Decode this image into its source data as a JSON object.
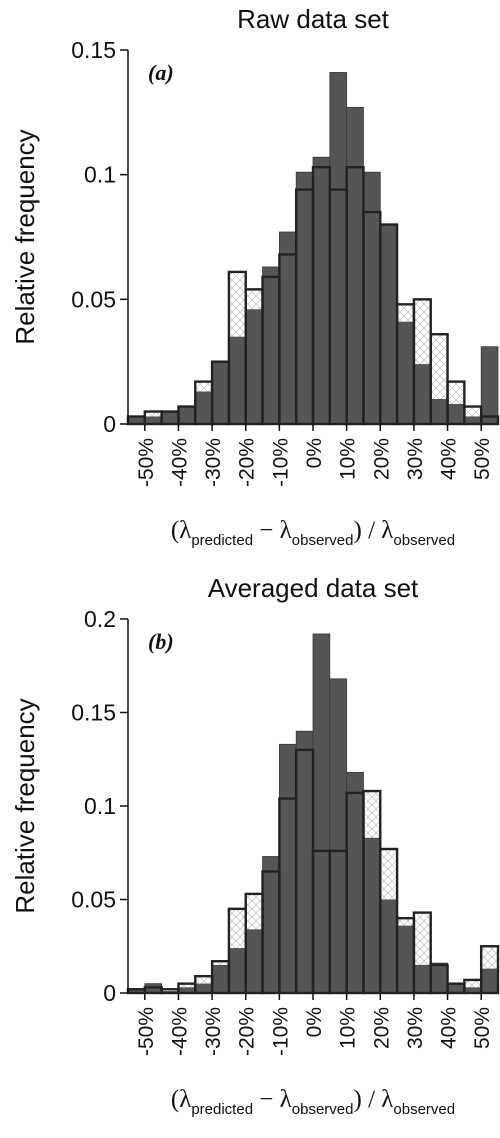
{
  "chart_data": [
    {
      "type": "bar",
      "title": "Raw data set",
      "panel_label": "(a)",
      "ylabel": "Relative frequency",
      "xlabel_parts": {
        "open": "(",
        "lambda1": "λ",
        "sub1": "predicted",
        "minus": " − ",
        "lambda2": "λ",
        "sub2": "observed",
        "close_div": ") / ",
        "lambda3": "λ",
        "sub3": "observed"
      },
      "xlim": [
        -55,
        55
      ],
      "ylim": [
        0,
        0.15
      ],
      "yticks": [
        {
          "value": 0,
          "label": "0"
        },
        {
          "value": 0.05,
          "label": "0.05"
        },
        {
          "value": 0.1,
          "label": "0.1"
        },
        {
          "value": 0.15,
          "label": "0.15"
        }
      ],
      "xticks": [
        {
          "value": -50,
          "label": "-50%"
        },
        {
          "value": -40,
          "label": "-40%"
        },
        {
          "value": -30,
          "label": "-30%"
        },
        {
          "value": -20,
          "label": "-20%"
        },
        {
          "value": -10,
          "label": "-10%"
        },
        {
          "value": 0,
          "label": "0%"
        },
        {
          "value": 10,
          "label": "10%"
        },
        {
          "value": 20,
          "label": "20%"
        },
        {
          "value": 30,
          "label": "30%"
        },
        {
          "value": 40,
          "label": "40%"
        },
        {
          "value": 50,
          "label": "50%"
        }
      ],
      "bin_width": 5,
      "bin_starts": [
        -55,
        -50,
        -45,
        -40,
        -35,
        -30,
        -25,
        -20,
        -15,
        -10,
        -5,
        0,
        5,
        10,
        15,
        20,
        25,
        30,
        35,
        40,
        45,
        50
      ],
      "series": [
        {
          "style": "filled",
          "values": [
            0.003,
            0.003,
            0.005,
            0.007,
            0.013,
            0.025,
            0.035,
            0.046,
            0.063,
            0.077,
            0.101,
            0.107,
            0.141,
            0.127,
            0.101,
            0.08,
            0.041,
            0.024,
            0.01,
            0.008,
            0.003,
            0.031
          ]
        },
        {
          "style": "outline",
          "values": [
            0.003,
            0.005,
            0.005,
            0.007,
            0.017,
            0.025,
            0.061,
            0.054,
            0.059,
            0.068,
            0.094,
            0.103,
            0.094,
            0.103,
            0.085,
            0.08,
            0.048,
            0.05,
            0.036,
            0.017,
            0.007,
            0.003
          ]
        }
      ]
    },
    {
      "type": "bar",
      "title": "Averaged data set",
      "panel_label": "(b)",
      "ylabel": "Relative frequency",
      "xlabel_parts": {
        "open": "(",
        "lambda1": "λ",
        "sub1": "predicted",
        "minus": " − ",
        "lambda2": "λ",
        "sub2": "observed",
        "close_div": ") / ",
        "lambda3": "λ",
        "sub3": "observed"
      },
      "xlim": [
        -55,
        55
      ],
      "ylim": [
        0,
        0.2
      ],
      "yticks": [
        {
          "value": 0,
          "label": "0"
        },
        {
          "value": 0.05,
          "label": "0.05"
        },
        {
          "value": 0.1,
          "label": "0.1"
        },
        {
          "value": 0.15,
          "label": "0.15"
        },
        {
          "value": 0.2,
          "label": "0.2"
        }
      ],
      "xticks": [
        {
          "value": -50,
          "label": "-50%"
        },
        {
          "value": -40,
          "label": "-40%"
        },
        {
          "value": -30,
          "label": "-30%"
        },
        {
          "value": -20,
          "label": "-20%"
        },
        {
          "value": -10,
          "label": "-10%"
        },
        {
          "value": 0,
          "label": "0%"
        },
        {
          "value": 10,
          "label": "10%"
        },
        {
          "value": 20,
          "label": "20%"
        },
        {
          "value": 30,
          "label": "30%"
        },
        {
          "value": 40,
          "label": "40%"
        },
        {
          "value": 50,
          "label": "50%"
        }
      ],
      "bin_width": 5,
      "bin_starts": [
        -55,
        -50,
        -45,
        -40,
        -35,
        -30,
        -25,
        -20,
        -15,
        -10,
        -5,
        0,
        5,
        10,
        15,
        20,
        25,
        30,
        35,
        40,
        45,
        50
      ],
      "series": [
        {
          "style": "filled",
          "values": [
            0.002,
            0.005,
            0.001,
            0.003,
            0.005,
            0.015,
            0.024,
            0.034,
            0.073,
            0.133,
            0.14,
            0.192,
            0.168,
            0.118,
            0.083,
            0.05,
            0.036,
            0.015,
            0.016,
            0.005,
            0.003,
            0.013
          ]
        },
        {
          "style": "outline",
          "values": [
            0.002,
            0.003,
            0.002,
            0.005,
            0.009,
            0.017,
            0.045,
            0.053,
            0.065,
            0.104,
            0.13,
            0.076,
            0.076,
            0.107,
            0.108,
            0.077,
            0.04,
            0.043,
            0.015,
            0.005,
            0.007,
            0.025
          ]
        }
      ]
    }
  ]
}
